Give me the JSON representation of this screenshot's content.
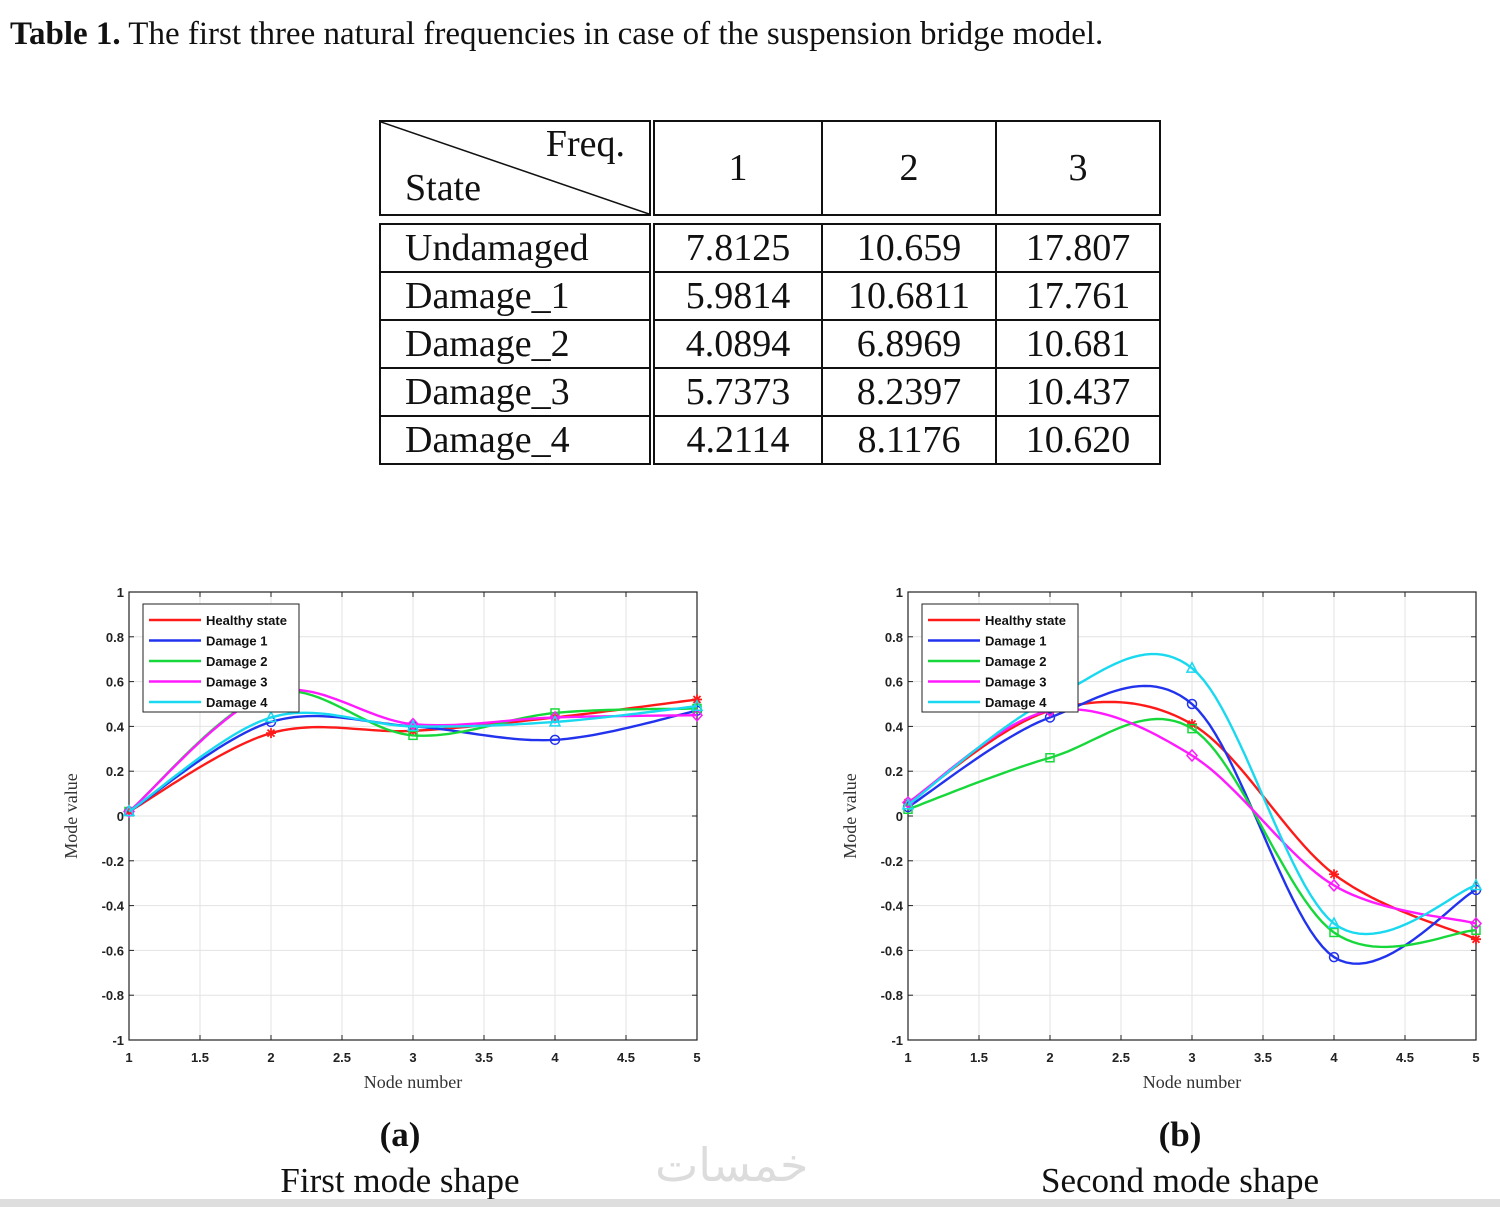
{
  "caption": {
    "label": "Table 1.",
    "text": " The first three natural frequencies in case of the suspension bridge model."
  },
  "table": {
    "header_freq": "Freq.",
    "header_state": "State",
    "columns": [
      "1",
      "2",
      "3"
    ],
    "rows": [
      {
        "state": "Undamaged",
        "values": [
          "7.8125",
          "10.659",
          "17.807"
        ]
      },
      {
        "state": "Damage_1",
        "values": [
          "5.9814",
          "10.6811",
          "17.761"
        ]
      },
      {
        "state": "Damage_2",
        "values": [
          "4.0894",
          "6.8969",
          "10.681"
        ]
      },
      {
        "state": "Damage_3",
        "values": [
          "5.7373",
          "8.2397",
          "10.437"
        ]
      },
      {
        "state": "Damage_4",
        "values": [
          "4.2114",
          "8.1176",
          "10.620"
        ]
      }
    ]
  },
  "chart_data": [
    {
      "type": "line",
      "id": "a",
      "panel_label": "(a)",
      "title": "First mode shape",
      "xlabel": "Node number",
      "ylabel": "Mode value",
      "xlim": [
        1,
        5
      ],
      "ylim": [
        -1,
        1
      ],
      "xticks": [
        "1",
        "1.5",
        "2",
        "2.5",
        "3",
        "3.5",
        "4",
        "4.5",
        "5"
      ],
      "yticks": [
        "-1",
        "-0.8",
        "-0.6",
        "-0.4",
        "-0.2",
        "0",
        "0.2",
        "0.4",
        "0.6",
        "0.8",
        "1"
      ],
      "grid": true,
      "legend": "top-left",
      "x": [
        1,
        2,
        3,
        4,
        5
      ],
      "series": [
        {
          "name": "Healthy state",
          "color": "#ff1a1a",
          "marker": "*",
          "values": [
            0.02,
            0.37,
            0.38,
            0.44,
            0.52
          ]
        },
        {
          "name": "Damage 1",
          "color": "#2233ee",
          "marker": "o",
          "values": [
            0.02,
            0.42,
            0.4,
            0.34,
            0.47
          ]
        },
        {
          "name": "Damage 2",
          "color": "#17d83a",
          "marker": "s",
          "values": [
            0.02,
            0.55,
            0.36,
            0.46,
            0.48
          ]
        },
        {
          "name": "Damage 3",
          "color": "#ff1aff",
          "marker": "d",
          "values": [
            0.02,
            0.55,
            0.41,
            0.44,
            0.45
          ]
        },
        {
          "name": "Damage 4",
          "color": "#19d9f0",
          "marker": "^",
          "values": [
            0.02,
            0.44,
            0.4,
            0.42,
            0.49
          ]
        }
      ]
    },
    {
      "type": "line",
      "id": "b",
      "panel_label": "(b)",
      "title": "Second mode shape",
      "xlabel": "Node number",
      "ylabel": "Mode value",
      "xlim": [
        1,
        5
      ],
      "ylim": [
        -1,
        1
      ],
      "xticks": [
        "1",
        "1.5",
        "2",
        "2.5",
        "3",
        "3.5",
        "4",
        "4.5",
        "5"
      ],
      "yticks": [
        "-1",
        "-0.8",
        "-0.6",
        "-0.4",
        "-0.2",
        "0",
        "0.2",
        "0.4",
        "0.6",
        "0.8",
        "1"
      ],
      "grid": true,
      "legend": "top-left",
      "x": [
        1,
        2,
        3,
        4,
        5
      ],
      "series": [
        {
          "name": "Healthy state",
          "color": "#ff1a1a",
          "marker": "*",
          "values": [
            0.06,
            0.47,
            0.41,
            -0.26,
            -0.55
          ]
        },
        {
          "name": "Damage 1",
          "color": "#2233ee",
          "marker": "o",
          "values": [
            0.04,
            0.44,
            0.5,
            -0.63,
            -0.33
          ]
        },
        {
          "name": "Damage 2",
          "color": "#17d83a",
          "marker": "s",
          "values": [
            0.03,
            0.26,
            0.39,
            -0.52,
            -0.51
          ]
        },
        {
          "name": "Damage 3",
          "color": "#ff1aff",
          "marker": "d",
          "values": [
            0.06,
            0.47,
            0.27,
            -0.31,
            -0.48
          ]
        },
        {
          "name": "Damage 4",
          "color": "#19d9f0",
          "marker": "^",
          "values": [
            0.05,
            0.52,
            0.66,
            -0.48,
            -0.31
          ]
        }
      ]
    }
  ],
  "watermark": "خمسات"
}
